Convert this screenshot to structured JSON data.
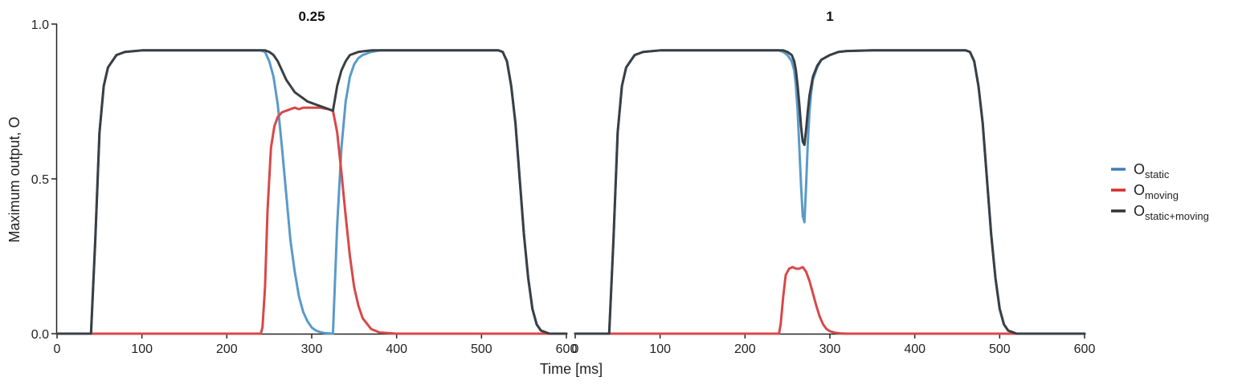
{
  "chart_data": {
    "type": "line",
    "ylabel": "Maximum output, O",
    "xlabel": "Time [ms]",
    "xlim": [
      0,
      600
    ],
    "ylim": [
      0,
      1
    ],
    "xticks": [
      "0",
      "100",
      "200",
      "300",
      "400",
      "500",
      "600"
    ],
    "yticks": [
      "0.0",
      "0.5",
      "1.0"
    ],
    "grid": false,
    "legend_position": "right",
    "colors": {
      "static": "#5a9ac9",
      "moving": "#d94848",
      "combined": "#3a3f44",
      "legend_static": "#3f7fb8",
      "legend_moving": "#d42e2e",
      "legend_combined": "#333333"
    },
    "legend": [
      {
        "key": "static",
        "base": "O",
        "sub": "static"
      },
      {
        "key": "moving",
        "base": "O",
        "sub": "moving"
      },
      {
        "key": "combined",
        "base": "O",
        "sub": "static+moving"
      }
    ],
    "panels": [
      {
        "title": "0.25",
        "series": {
          "static": {
            "x": [
              0,
              40,
              45,
              50,
              55,
              60,
              70,
              80,
              100,
              150,
              200,
              240,
              245,
              250,
              255,
              260,
              265,
              270,
              275,
              280,
              285,
              290,
              295,
              300,
              305,
              310,
              315,
              320,
              325,
              330,
              335,
              340,
              345,
              350,
              355,
              360,
              370,
              380,
              400,
              450,
              500,
              520,
              525,
              530,
              535,
              540,
              545,
              550,
              555,
              560,
              565,
              570,
              580,
              600
            ],
            "y": [
              0,
              0,
              0.3,
              0.65,
              0.8,
              0.86,
              0.9,
              0.91,
              0.915,
              0.915,
              0.915,
              0.915,
              0.91,
              0.88,
              0.83,
              0.74,
              0.6,
              0.45,
              0.3,
              0.2,
              0.12,
              0.07,
              0.04,
              0.02,
              0.01,
              0.005,
              0.002,
              0.001,
              0,
              0.35,
              0.6,
              0.75,
              0.83,
              0.87,
              0.89,
              0.9,
              0.91,
              0.915,
              0.915,
              0.915,
              0.915,
              0.915,
              0.91,
              0.88,
              0.8,
              0.68,
              0.5,
              0.32,
              0.18,
              0.08,
              0.03,
              0.01,
              0,
              0
            ]
          },
          "moving": {
            "x": [
              0,
              240,
              242,
              245,
              248,
              252,
              256,
              260,
              265,
              270,
              280,
              285,
              290,
              300,
              310,
              320,
              325,
              330,
              335,
              340,
              345,
              350,
              355,
              360,
              370,
              380,
              400,
              600
            ],
            "y": [
              0,
              0,
              0.02,
              0.15,
              0.4,
              0.6,
              0.67,
              0.7,
              0.715,
              0.72,
              0.73,
              0.725,
              0.73,
              0.73,
              0.73,
              0.725,
              0.72,
              0.65,
              0.52,
              0.38,
              0.25,
              0.15,
              0.09,
              0.05,
              0.015,
              0.004,
              0,
              0
            ]
          },
          "combined": {
            "x": [
              0,
              40,
              45,
              50,
              55,
              60,
              70,
              80,
              100,
              150,
              200,
              240,
              245,
              250,
              255,
              260,
              265,
              270,
              275,
              280,
              285,
              290,
              295,
              300,
              305,
              310,
              315,
              320,
              325,
              330,
              335,
              340,
              345,
              350,
              355,
              360,
              370,
              380,
              400,
              450,
              500,
              520,
              525,
              530,
              535,
              540,
              545,
              550,
              555,
              560,
              565,
              570,
              580,
              600
            ],
            "y": [
              0,
              0,
              0.3,
              0.65,
              0.8,
              0.86,
              0.9,
              0.91,
              0.915,
              0.915,
              0.915,
              0.915,
              0.915,
              0.91,
              0.9,
              0.88,
              0.85,
              0.82,
              0.8,
              0.78,
              0.77,
              0.76,
              0.75,
              0.745,
              0.74,
              0.735,
              0.73,
              0.725,
              0.72,
              0.8,
              0.85,
              0.88,
              0.9,
              0.905,
              0.91,
              0.912,
              0.915,
              0.915,
              0.915,
              0.915,
              0.915,
              0.915,
              0.91,
              0.88,
              0.8,
              0.68,
              0.5,
              0.32,
              0.18,
              0.08,
              0.03,
              0.01,
              0,
              0
            ]
          }
        }
      },
      {
        "title": "1",
        "series": {
          "static": {
            "x": [
              0,
              40,
              45,
              50,
              55,
              60,
              70,
              80,
              100,
              150,
              200,
              240,
              245,
              250,
              255,
              258,
              260,
              262,
              264,
              266,
              268,
              270,
              272,
              274,
              276,
              278,
              280,
              285,
              290,
              300,
              310,
              320,
              350,
              400,
              460,
              465,
              470,
              475,
              480,
              485,
              490,
              495,
              500,
              505,
              510,
              520,
              600
            ],
            "y": [
              0,
              0,
              0.3,
              0.65,
              0.8,
              0.86,
              0.9,
              0.91,
              0.915,
              0.915,
              0.915,
              0.915,
              0.91,
              0.9,
              0.88,
              0.85,
              0.8,
              0.72,
              0.6,
              0.48,
              0.38,
              0.36,
              0.48,
              0.62,
              0.72,
              0.78,
              0.82,
              0.86,
              0.885,
              0.9,
              0.91,
              0.913,
              0.915,
              0.915,
              0.915,
              0.91,
              0.88,
              0.8,
              0.68,
              0.5,
              0.32,
              0.18,
              0.08,
              0.03,
              0.01,
              0,
              0
            ]
          },
          "moving": {
            "x": [
              0,
              240,
              242,
              245,
              248,
              252,
              256,
              260,
              264,
              268,
              272,
              276,
              280,
              284,
              288,
              292,
              296,
              300,
              306,
              312,
              320,
              330,
              600
            ],
            "y": [
              0,
              0,
              0.03,
              0.12,
              0.19,
              0.21,
              0.215,
              0.21,
              0.21,
              0.215,
              0.2,
              0.17,
              0.13,
              0.09,
              0.055,
              0.03,
              0.015,
              0.008,
              0.003,
              0.001,
              0,
              0,
              0
            ]
          },
          "combined": {
            "x": [
              0,
              40,
              45,
              50,
              55,
              60,
              70,
              80,
              100,
              150,
              200,
              240,
              245,
              250,
              255,
              258,
              260,
              262,
              264,
              266,
              268,
              270,
              272,
              274,
              276,
              278,
              280,
              285,
              290,
              300,
              310,
              320,
              350,
              400,
              460,
              465,
              470,
              475,
              480,
              485,
              490,
              495,
              500,
              505,
              510,
              520,
              600
            ],
            "y": [
              0,
              0,
              0.3,
              0.65,
              0.8,
              0.86,
              0.9,
              0.91,
              0.915,
              0.915,
              0.915,
              0.915,
              0.915,
              0.91,
              0.9,
              0.88,
              0.85,
              0.8,
              0.74,
              0.67,
              0.62,
              0.61,
              0.66,
              0.72,
              0.77,
              0.8,
              0.83,
              0.865,
              0.885,
              0.9,
              0.91,
              0.913,
              0.915,
              0.915,
              0.915,
              0.91,
              0.88,
              0.8,
              0.68,
              0.5,
              0.32,
              0.18,
              0.08,
              0.03,
              0.01,
              0,
              0
            ]
          }
        }
      }
    ]
  }
}
